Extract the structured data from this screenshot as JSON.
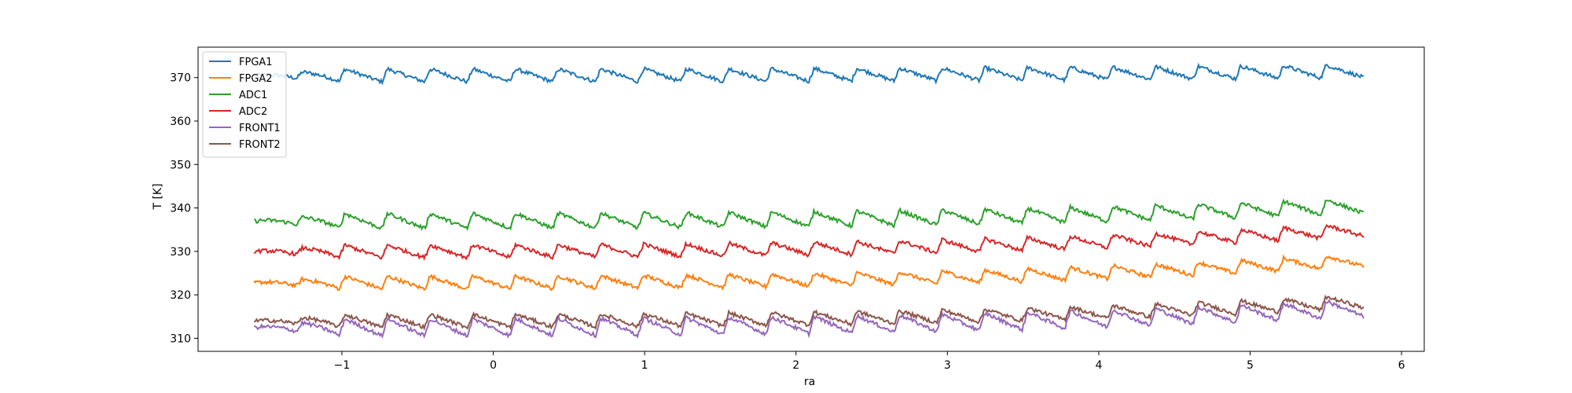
{
  "chart_data": {
    "type": "line",
    "title": "",
    "xlabel": "ra",
    "ylabel": "T [K]",
    "xlim": [
      -1.95,
      6.15
    ],
    "ylim": [
      307,
      377
    ],
    "xticks": [
      -1,
      0,
      1,
      2,
      3,
      4,
      5,
      6
    ],
    "yticks": [
      310,
      320,
      330,
      340,
      350,
      360,
      370
    ],
    "grid": false,
    "legend_position": "top-left",
    "x_start": -1.58,
    "x_end": 5.75,
    "cycles": 26,
    "series": [
      {
        "name": "FPGA1",
        "color": "#1f77b4",
        "baseline": 370.0,
        "amplitude": 3.0,
        "first_value": 370.5,
        "last_value": 371.5
      },
      {
        "name": "FPGA2",
        "color": "#ff7f0e",
        "baseline": 323.0,
        "amplitude": 3.0,
        "first_value": 322.8,
        "last_value": 328.0
      },
      {
        "name": "ADC1",
        "color": "#2ca02c",
        "baseline": 336.0,
        "amplitude": 3.5,
        "first_value": 337.0,
        "last_value": 340.5
      },
      {
        "name": "ADC2",
        "color": "#d62728",
        "baseline": 330.0,
        "amplitude": 3.0,
        "first_value": 330.0,
        "last_value": 335.0
      },
      {
        "name": "FRONT1",
        "color": "#9467bd",
        "baseline": 311.5,
        "amplitude": 4.0,
        "first_value": 312.5,
        "last_value": 317.0
      },
      {
        "name": "FRONT2",
        "color": "#8c564b",
        "baseline": 314.0,
        "amplitude": 3.0,
        "first_value": 314.0,
        "last_value": 318.5
      }
    ]
  }
}
